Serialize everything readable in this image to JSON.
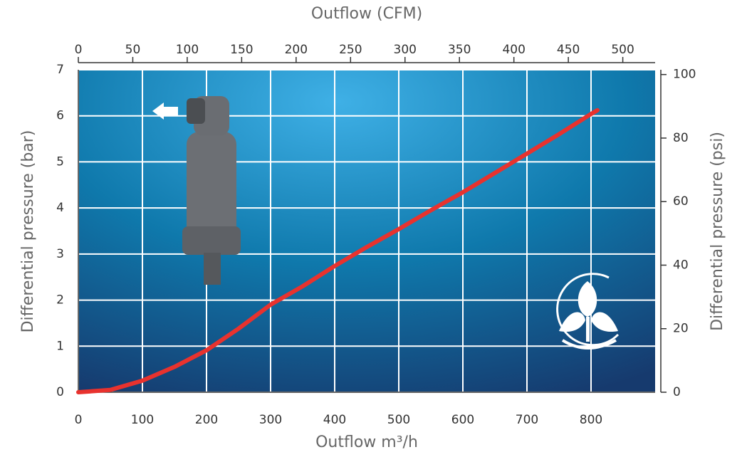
{
  "chart_data": {
    "type": "line",
    "title": "Outflow (CFM)",
    "x_label": "Outflow m³/h",
    "y_label": "Differential pressure (bar)",
    "y2_label": "Differential pressure (psi)",
    "x": [
      0,
      50,
      100,
      150,
      200,
      250,
      300,
      350,
      400,
      450,
      500,
      550,
      600,
      650,
      700,
      750,
      800,
      810
    ],
    "values": [
      0,
      0.05,
      0.25,
      0.55,
      0.91,
      1.38,
      1.9,
      2.3,
      2.74,
      3.15,
      3.54,
      3.95,
      4.34,
      4.76,
      5.18,
      5.6,
      6.04,
      6.12
    ],
    "color": "#e8322e",
    "xlim": [
      0,
      900
    ],
    "xticks": [
      0,
      100,
      200,
      300,
      400,
      500,
      600,
      700,
      800
    ],
    "x2lim": [
      0,
      529.7
    ],
    "x2ticks": [
      0,
      50,
      100,
      150,
      200,
      250,
      300,
      350,
      400,
      450,
      500
    ],
    "ylim": [
      0,
      7
    ],
    "yticks": [
      0,
      1,
      2,
      3,
      4,
      5,
      6,
      7
    ],
    "y2lim": [
      0,
      101.5
    ],
    "y2ticks": [
      0,
      20,
      40,
      60,
      80,
      100
    ],
    "grid": true
  }
}
